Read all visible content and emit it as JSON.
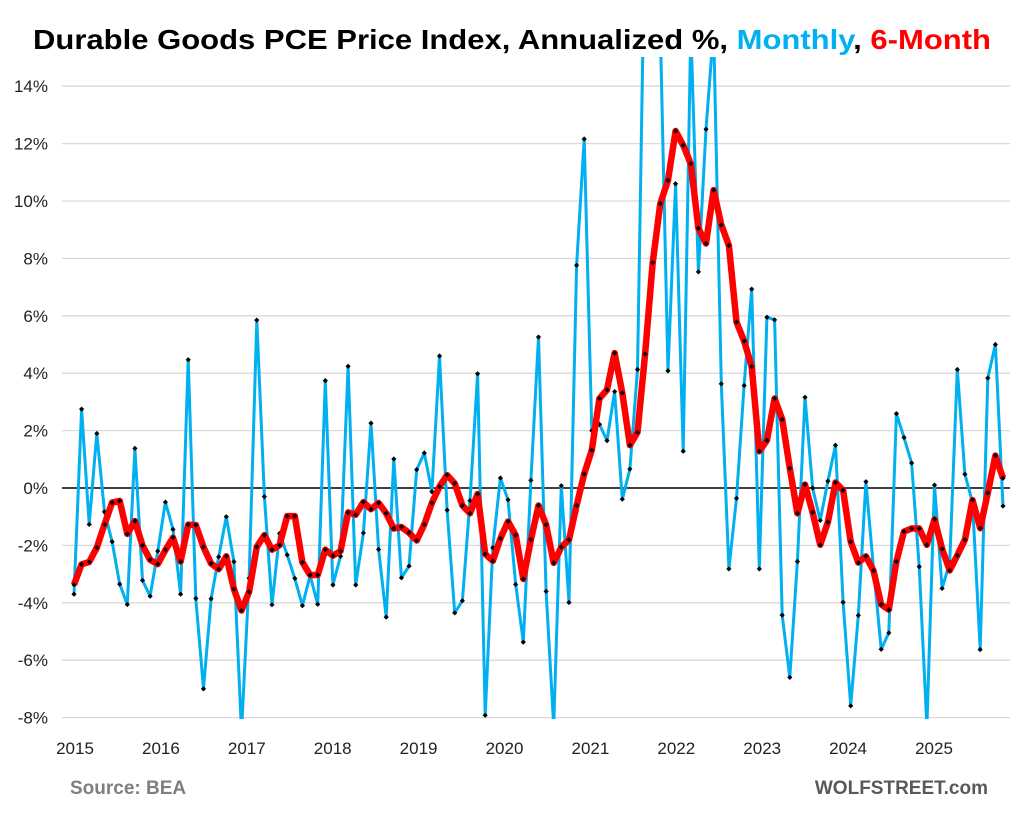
{
  "chart_data": {
    "type": "line",
    "title": {
      "prefix": "Durable Goods PCE Price Index, Annualized %, ",
      "monthly_label": "Monthly",
      "separator": ", ",
      "six_month_label": "6-Month"
    },
    "x_start": "2015-01",
    "x_end": "2025-03",
    "x_tick_labels": [
      "2015",
      "2016",
      "2017",
      "2018",
      "2019",
      "2020",
      "2021",
      "2022",
      "2023",
      "2024",
      "2025"
    ],
    "y_ticks": [
      -8,
      -6,
      -4,
      -2,
      0,
      2,
      4,
      6,
      8,
      10,
      12,
      14
    ],
    "y_tick_labels": [
      "-8%",
      "-6%",
      "-4%",
      "-2%",
      "0%",
      "2%",
      "4%",
      "6%",
      "8%",
      "10%",
      "12%",
      "14%"
    ],
    "ylim": [
      -8,
      15
    ],
    "grid": true,
    "series": [
      {
        "name": "Monthly",
        "color": "#00b0f0",
        "values": [
          -3.7,
          2.75,
          -1.27,
          1.9,
          -0.83,
          -1.87,
          -3.35,
          -4.06,
          1.38,
          -3.22,
          -3.77,
          -2.2,
          -0.49,
          -1.44,
          -3.7,
          4.47,
          -3.85,
          -7.0,
          -3.86,
          -2.4,
          -1.0,
          -2.57,
          -8.5,
          -3.14,
          5.85,
          -0.3,
          -4.07,
          -1.58,
          -2.33,
          -3.15,
          -4.1,
          -3.05,
          -4.05,
          3.74,
          -3.38,
          -2.38,
          4.24,
          -3.38,
          -1.57,
          2.26,
          -2.14,
          -4.5,
          1.01,
          -3.13,
          -2.72,
          0.64,
          1.22,
          -0.13,
          4.6,
          -0.77,
          -4.35,
          -3.93,
          -0.44,
          3.98,
          -7.92,
          -2.08,
          0.35,
          -0.41,
          -3.36,
          -5.37,
          0.27,
          5.26,
          -3.6,
          -8.3,
          0.08,
          -3.99,
          7.76,
          12.16,
          2.0,
          2.22,
          1.65,
          3.36,
          -0.39,
          0.66,
          4.13,
          20,
          24,
          16,
          4.08,
          10.6,
          1.28,
          16,
          7.53,
          12.5,
          16,
          3.63,
          -2.82,
          -0.36,
          3.57,
          6.93,
          -2.82,
          5.95,
          5.86,
          -4.43,
          -6.6,
          -2.56,
          3.16,
          0,
          -1.13,
          0.24,
          1.49,
          -3.98,
          -7.59,
          -4.44,
          0.22,
          -2.8,
          -5.62,
          -5.05,
          2.59,
          1.76,
          0.87,
          -2.74,
          -8.3,
          0.1,
          -3.5,
          -2.6,
          4.13,
          0.48,
          -0.5,
          -5.63,
          3.83,
          5.0,
          -0.63
        ]
      },
      {
        "name": "6-Month",
        "color": "#ff0000",
        "values": [
          -3.37,
          -2.66,
          -2.58,
          -2.08,
          -1.27,
          -0.51,
          -0.45,
          -1.6,
          -1.15,
          -2.0,
          -2.5,
          -2.65,
          -2.16,
          -1.73,
          -2.56,
          -1.28,
          -1.29,
          -2.06,
          -2.63,
          -2.83,
          -2.38,
          -3.52,
          -4.27,
          -3.62,
          -2.05,
          -1.64,
          -2.15,
          -1.99,
          -0.98,
          -0.98,
          -2.59,
          -3.03,
          -3.03,
          -2.15,
          -2.36,
          -2.2,
          -0.85,
          -0.93,
          -0.49,
          -0.74,
          -0.52,
          -0.88,
          -1.41,
          -1.36,
          -1.56,
          -1.83,
          -1.27,
          -0.52,
          0.05,
          0.45,
          0.16,
          -0.61,
          -0.88,
          -0.21,
          -2.3,
          -2.54,
          -1.76,
          -1.17,
          -1.64,
          -3.17,
          -1.8,
          -0.61,
          -1.28,
          -2.61,
          -2.06,
          -1.8,
          -0.61,
          0.49,
          1.32,
          3.12,
          3.42,
          4.7,
          3.31,
          1.49,
          1.94,
          4.67,
          7.85,
          9.91,
          10.72,
          12.44,
          11.94,
          11.3,
          9.05,
          8.52,
          10.38,
          9.17,
          8.45,
          5.78,
          5.12,
          4.23,
          1.28,
          1.66,
          3.12,
          2.39,
          0.69,
          -0.88,
          0.12,
          -0.85,
          -1.98,
          -1.19,
          0.19,
          -0.08,
          -1.87,
          -2.6,
          -2.38,
          -2.88,
          -4.06,
          -4.24,
          -2.56,
          -1.52,
          -1.41,
          -1.41,
          -1.98,
          -1.09,
          -2.12,
          -2.87,
          -2.35,
          -1.8,
          -0.42,
          -1.4,
          -0.17,
          1.13,
          0.34
        ]
      }
    ],
    "marker": "black-diamond",
    "source": "Source: BEA",
    "watermark": "WOLFSTREET.com"
  }
}
